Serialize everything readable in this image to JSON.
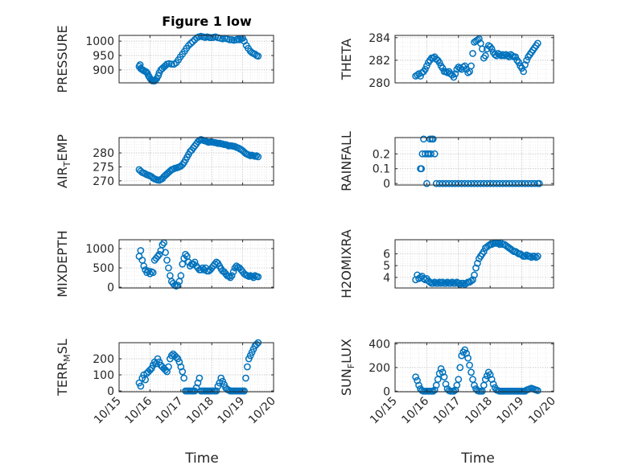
{
  "figure": {
    "title": "Figure 1 low",
    "marker_color": "#0072BD",
    "x_label_left": "Time",
    "x_label_right": "Time",
    "x_ticks": [
      "10/15",
      "10/16",
      "10/17",
      "10/18",
      "10/19",
      "10/20"
    ]
  },
  "chart_data": [
    {
      "id": "pressure",
      "type": "scatter",
      "title": "Figure 1 low",
      "ylabel": "PRESSURE",
      "ylim": [
        855,
        1020
      ],
      "yticks": [
        900,
        950,
        1000
      ],
      "xlim": [
        15,
        20
      ],
      "grid": true,
      "x": [
        15.65,
        15.68,
        15.7,
        15.73,
        15.77,
        15.8,
        15.85,
        15.88,
        15.92,
        15.95,
        15.98,
        16.02,
        16.05,
        16.08,
        16.12,
        16.15,
        16.18,
        16.22,
        16.27,
        16.3,
        16.35,
        16.4,
        16.45,
        16.5,
        16.55,
        16.62,
        16.7,
        16.78,
        16.85,
        16.92,
        16.98,
        17.05,
        17.12,
        17.18,
        17.25,
        17.32,
        17.38,
        17.45,
        17.52,
        17.58,
        17.65,
        17.72,
        17.78,
        17.85,
        17.92,
        17.98,
        18.05,
        18.12,
        18.2,
        18.28,
        18.35,
        18.42,
        18.5,
        18.58,
        18.65,
        18.72,
        18.8,
        18.85,
        18.9,
        18.95,
        19.0,
        19.05,
        19.12,
        19.18,
        19.25,
        19.3,
        19.35,
        19.4,
        19.45,
        19.5
      ],
      "y": [
        912,
        918,
        905,
        902,
        900,
        897,
        895,
        893,
        888,
        880,
        875,
        868,
        865,
        862,
        862,
        862,
        865,
        870,
        880,
        890,
        900,
        905,
        910,
        915,
        920,
        922,
        920,
        920,
        925,
        935,
        945,
        955,
        965,
        975,
        985,
        992,
        998,
        1005,
        1012,
        1015,
        1017,
        1015,
        1013,
        1015,
        1013,
        1012,
        1013,
        1015,
        1012,
        1010,
        1008,
        1010,
        1008,
        1005,
        1005,
        1003,
        1005,
        1008,
        1005,
        1008,
        1010,
        1000,
        985,
        975,
        965,
        960,
        957,
        955,
        950,
        948
      ]
    },
    {
      "id": "theta",
      "type": "scatter",
      "title": "",
      "ylabel": "THETA",
      "ylim": [
        280,
        284.2
      ],
      "yticks": [
        280,
        282,
        284
      ],
      "xlim": [
        15,
        20
      ],
      "grid": true,
      "x": [
        15.65,
        15.7,
        15.75,
        15.8,
        15.85,
        15.9,
        15.95,
        16.0,
        16.05,
        16.1,
        16.15,
        16.2,
        16.25,
        16.3,
        16.35,
        16.4,
        16.45,
        16.5,
        16.55,
        16.6,
        16.65,
        16.7,
        16.75,
        16.8,
        16.85,
        16.9,
        16.95,
        17.0,
        17.05,
        17.1,
        17.15,
        17.2,
        17.25,
        17.3,
        17.35,
        17.4,
        17.45,
        17.5,
        17.55,
        17.6,
        17.65,
        17.7,
        17.75,
        17.8,
        17.85,
        17.9,
        17.95,
        18.0,
        18.05,
        18.1,
        18.15,
        18.2,
        18.25,
        18.3,
        18.35,
        18.4,
        18.45,
        18.5,
        18.55,
        18.6,
        18.65,
        18.7,
        18.75,
        18.8,
        18.85,
        18.9,
        18.95,
        19.0,
        19.05,
        19.1,
        19.15,
        19.2,
        19.25,
        19.3,
        19.35,
        19.4,
        19.45,
        19.5
      ],
      "y": [
        280.6,
        280.7,
        280.8,
        280.6,
        280.9,
        281.0,
        281.2,
        281.5,
        281.8,
        282.0,
        282.2,
        282.2,
        282.3,
        282.1,
        282.0,
        281.8,
        281.5,
        281.3,
        281.0,
        281.0,
        280.9,
        281.0,
        280.8,
        280.7,
        280.5,
        280.8,
        281.2,
        281.4,
        281.3,
        281.2,
        281.4,
        281.5,
        281.2,
        280.9,
        281.0,
        281.5,
        282.6,
        283.6,
        283.7,
        283.8,
        283.9,
        283.5,
        283.0,
        282.2,
        282.4,
        283.0,
        283.3,
        283.2,
        283.0,
        282.7,
        282.5,
        282.4,
        282.6,
        282.5,
        282.4,
        282.5,
        282.4,
        282.5,
        282.4,
        282.3,
        282.5,
        282.4,
        282.3,
        282.3,
        282.0,
        281.8,
        281.5,
        281.3,
        281.0,
        281.6,
        282.0,
        282.3,
        282.5,
        282.7,
        282.9,
        283.1,
        283.3,
        283.5
      ]
    },
    {
      "id": "air_temp",
      "type": "scatter",
      "title": "",
      "ylabel": "AIR_TEMP",
      "ylabel_display": {
        "base": "AIR",
        "sub": "T",
        "rest": "EMP"
      },
      "ylim": [
        268.5,
        285.5
      ],
      "yticks": [
        270,
        275,
        280
      ],
      "xlim": [
        15,
        20
      ],
      "grid": true,
      "x": [
        15.65,
        15.7,
        15.75,
        15.8,
        15.85,
        15.9,
        15.95,
        16.0,
        16.05,
        16.1,
        16.15,
        16.2,
        16.25,
        16.3,
        16.35,
        16.4,
        16.45,
        16.5,
        16.55,
        16.6,
        16.65,
        16.7,
        16.75,
        16.8,
        16.85,
        16.9,
        16.95,
        17.0,
        17.05,
        17.1,
        17.15,
        17.2,
        17.25,
        17.3,
        17.35,
        17.4,
        17.45,
        17.5,
        17.55,
        17.6,
        17.65,
        17.7,
        17.75,
        17.8,
        17.85,
        17.9,
        17.95,
        18.0,
        18.05,
        18.1,
        18.15,
        18.2,
        18.25,
        18.3,
        18.35,
        18.4,
        18.45,
        18.5,
        18.55,
        18.6,
        18.65,
        18.7,
        18.75,
        18.8,
        18.85,
        18.9,
        18.95,
        19.0,
        19.05,
        19.1,
        19.15,
        19.2,
        19.25,
        19.3,
        19.35,
        19.4,
        19.45,
        19.5
      ],
      "y": [
        274.0,
        273.5,
        273.0,
        272.8,
        272.5,
        272.2,
        272.0,
        271.8,
        271.5,
        271.0,
        270.7,
        270.5,
        270.3,
        270.2,
        270.5,
        270.8,
        271.5,
        272.0,
        272.5,
        273.0,
        273.5,
        274.0,
        274.2,
        274.5,
        274.6,
        274.8,
        275.0,
        275.3,
        275.8,
        276.5,
        277.5,
        278.5,
        279.5,
        280.5,
        281.0,
        281.8,
        282.5,
        283.2,
        284.0,
        284.5,
        284.8,
        284.6,
        284.4,
        284.3,
        284.0,
        283.8,
        284.0,
        283.9,
        283.8,
        283.7,
        283.6,
        283.4,
        283.5,
        283.3,
        283.2,
        283.0,
        283.0,
        282.8,
        282.5,
        282.6,
        282.5,
        282.4,
        282.3,
        282.0,
        281.8,
        281.5,
        281.2,
        280.8,
        280.3,
        279.8,
        279.5,
        279.3,
        279.0,
        279.2,
        279.0,
        278.8,
        279.0,
        278.6
      ]
    },
    {
      "id": "rainfall",
      "type": "scatter",
      "title": "",
      "ylabel": "RAINFALL",
      "ylim": [
        -0.01,
        0.31
      ],
      "yticks": [
        0,
        0.1,
        0.2
      ],
      "xlim": [
        15,
        20
      ],
      "grid": true,
      "x": [
        15.8,
        15.83,
        15.86,
        15.9,
        15.95,
        16.0,
        16.03,
        16.06,
        16.1,
        16.13,
        16.16,
        16.2,
        16.25,
        16.3,
        16.4,
        16.5,
        16.6,
        16.7,
        16.8,
        16.9,
        17.0,
        17.1,
        17.2,
        17.3,
        17.4,
        17.5,
        17.6,
        17.7,
        17.8,
        17.9,
        18.0,
        18.1,
        18.2,
        18.3,
        18.4,
        18.5,
        18.6,
        18.7,
        18.8,
        18.9,
        19.0,
        19.1,
        19.2,
        19.3,
        19.4,
        19.5,
        19.55
      ],
      "y": [
        0.1,
        0.1,
        0.2,
        0.3,
        0.2,
        0.0,
        0.2,
        0.2,
        0.3,
        0.2,
        0.3,
        0.3,
        0.2,
        0.0,
        0.0,
        0.0,
        0.0,
        0.0,
        0.0,
        0.0,
        0.0,
        0.0,
        0.0,
        0.0,
        0.0,
        0.0,
        0.0,
        0.0,
        0.0,
        0.0,
        0.0,
        0.0,
        0.0,
        0.0,
        0.0,
        0.0,
        0.0,
        0.0,
        0.0,
        0.0,
        0.0,
        0.0,
        0.0,
        0.0,
        0.0,
        0.0,
        0.0
      ]
    },
    {
      "id": "mixdepth",
      "type": "scatter",
      "title": "",
      "ylabel": "MIXDEPTH",
      "ylim": [
        -20,
        1230
      ],
      "yticks": [
        0,
        500,
        1000
      ],
      "xlim": [
        15,
        20
      ],
      "grid": true,
      "x": [
        15.65,
        15.7,
        15.75,
        15.8,
        15.85,
        15.9,
        15.95,
        16.0,
        16.05,
        16.1,
        16.15,
        16.2,
        16.25,
        16.3,
        16.35,
        16.4,
        16.45,
        16.5,
        16.55,
        16.6,
        16.65,
        16.7,
        16.75,
        16.8,
        16.85,
        16.9,
        16.95,
        17.0,
        17.05,
        17.1,
        17.15,
        17.2,
        17.25,
        17.3,
        17.35,
        17.4,
        17.45,
        17.5,
        17.55,
        17.6,
        17.65,
        17.7,
        17.75,
        17.8,
        17.85,
        17.9,
        17.95,
        18.0,
        18.05,
        18.1,
        18.15,
        18.2,
        18.25,
        18.3,
        18.35,
        18.4,
        18.45,
        18.5,
        18.55,
        18.6,
        18.65,
        18.7,
        18.75,
        18.8,
        18.85,
        18.9,
        18.95,
        19.0,
        19.05,
        19.1,
        19.15,
        19.2,
        19.25,
        19.3,
        19.35,
        19.4,
        19.45,
        19.5
      ],
      "y": [
        800,
        950,
        700,
        550,
        450,
        380,
        420,
        350,
        400,
        380,
        700,
        750,
        800,
        850,
        950,
        1100,
        1150,
        900,
        700,
        500,
        300,
        150,
        100,
        50,
        30,
        50,
        150,
        300,
        600,
        750,
        850,
        800,
        650,
        550,
        600,
        600,
        650,
        550,
        500,
        450,
        450,
        500,
        450,
        500,
        420,
        420,
        450,
        500,
        550,
        600,
        650,
        620,
        550,
        480,
        420,
        400,
        350,
        300,
        280,
        250,
        300,
        400,
        500,
        550,
        520,
        500,
        450,
        400,
        350,
        320,
        300,
        280,
        300,
        280,
        250,
        300,
        280,
        270
      ]
    },
    {
      "id": "h2omixra",
      "type": "scatter",
      "title": "",
      "ylabel": "H2OMIXRA",
      "ylim": [
        3.1,
        7.2
      ],
      "yticks": [
        4,
        5,
        6
      ],
      "xlim": [
        15,
        20
      ],
      "grid": true,
      "x": [
        15.65,
        15.7,
        15.75,
        15.8,
        15.85,
        15.9,
        15.95,
        16.0,
        16.05,
        16.1,
        16.15,
        16.2,
        16.25,
        16.3,
        16.35,
        16.4,
        16.45,
        16.5,
        16.55,
        16.6,
        16.65,
        16.7,
        16.75,
        16.8,
        16.85,
        16.9,
        16.95,
        17.0,
        17.05,
        17.1,
        17.15,
        17.2,
        17.25,
        17.3,
        17.35,
        17.4,
        17.45,
        17.5,
        17.55,
        17.6,
        17.65,
        17.7,
        17.75,
        17.8,
        17.85,
        17.9,
        17.95,
        18.0,
        18.05,
        18.1,
        18.15,
        18.2,
        18.25,
        18.3,
        18.35,
        18.4,
        18.45,
        18.5,
        18.55,
        18.6,
        18.65,
        18.7,
        18.75,
        18.8,
        18.85,
        18.9,
        18.95,
        19.0,
        19.05,
        19.1,
        19.15,
        19.2,
        19.25,
        19.3,
        19.35,
        19.4,
        19.45,
        19.5
      ],
      "y": [
        3.8,
        4.2,
        3.9,
        4.0,
        4.1,
        3.9,
        3.8,
        3.9,
        3.7,
        3.6,
        3.5,
        3.5,
        3.6,
        3.5,
        3.5,
        3.6,
        3.5,
        3.6,
        3.5,
        3.5,
        3.6,
        3.5,
        3.5,
        3.6,
        3.5,
        3.5,
        3.6,
        3.5,
        3.4,
        3.5,
        3.5,
        3.4,
        3.5,
        3.6,
        3.6,
        3.7,
        3.8,
        4.2,
        4.8,
        5.2,
        5.6,
        5.8,
        6.0,
        6.2,
        6.5,
        6.6,
        6.7,
        6.8,
        6.8,
        6.9,
        6.9,
        6.9,
        6.9,
        6.8,
        6.9,
        6.8,
        6.8,
        6.7,
        6.6,
        6.5,
        6.4,
        6.3,
        6.2,
        6.2,
        6.1,
        6.0,
        6.0,
        5.9,
        5.8,
        5.8,
        5.9,
        5.8,
        5.8,
        5.7,
        5.8,
        5.8,
        5.7,
        5.8
      ]
    },
    {
      "id": "terr_msl",
      "type": "scatter",
      "title": "",
      "ylabel": "TERR_MSL",
      "ylabel_display": {
        "base": "TERR",
        "sub": "M",
        "rest": "SL"
      },
      "ylim": [
        -5,
        300
      ],
      "yticks": [
        0,
        100,
        200
      ],
      "xlim": [
        15,
        20
      ],
      "grid": true,
      "x": [
        15.65,
        15.7,
        15.75,
        15.8,
        15.85,
        15.9,
        15.95,
        16.0,
        16.05,
        16.1,
        16.15,
        16.2,
        16.25,
        16.3,
        16.35,
        16.4,
        16.45,
        16.5,
        16.55,
        16.6,
        16.65,
        16.7,
        16.75,
        16.8,
        16.85,
        16.9,
        16.95,
        17.0,
        17.05,
        17.1,
        17.15,
        17.2,
        17.25,
        17.3,
        17.35,
        17.4,
        17.45,
        17.5,
        17.55,
        17.6,
        17.65,
        17.7,
        17.75,
        17.8,
        17.85,
        17.9,
        17.95,
        18.0,
        18.05,
        18.1,
        18.15,
        18.2,
        18.25,
        18.3,
        18.35,
        18.4,
        18.45,
        18.5,
        18.55,
        18.6,
        18.65,
        18.7,
        18.75,
        18.8,
        18.85,
        18.9,
        18.95,
        19.0,
        19.05,
        19.1,
        19.15,
        19.2,
        19.25,
        19.3,
        19.35,
        19.4,
        19.45,
        19.5
      ],
      "y": [
        50,
        30,
        80,
        100,
        70,
        110,
        120,
        130,
        140,
        160,
        180,
        170,
        200,
        180,
        160,
        150,
        140,
        130,
        120,
        150,
        200,
        220,
        230,
        220,
        210,
        200,
        180,
        150,
        120,
        80,
        0,
        0,
        0,
        0,
        0,
        0,
        0,
        20,
        50,
        80,
        0,
        0,
        0,
        0,
        0,
        0,
        0,
        0,
        0,
        0,
        0,
        30,
        50,
        80,
        60,
        40,
        20,
        10,
        5,
        0,
        0,
        0,
        0,
        0,
        0,
        0,
        0,
        0,
        0,
        80,
        150,
        200,
        220,
        240,
        260,
        280,
        290,
        300
      ]
    },
    {
      "id": "sun_flux",
      "type": "scatter",
      "title": "",
      "ylabel": "SUN_FLUX",
      "ylabel_display": {
        "base": "SUN",
        "sub": "F",
        "rest": "LUX"
      },
      "ylim": [
        -5,
        410
      ],
      "yticks": [
        0,
        200,
        400
      ],
      "xlim": [
        15,
        20
      ],
      "grid": true,
      "x": [
        15.65,
        15.7,
        15.75,
        15.8,
        15.85,
        15.9,
        15.95,
        16.0,
        16.05,
        16.1,
        16.15,
        16.2,
        16.25,
        16.3,
        16.35,
        16.4,
        16.45,
        16.5,
        16.55,
        16.6,
        16.65,
        16.7,
        16.75,
        16.8,
        16.85,
        16.9,
        16.95,
        17.0,
        17.05,
        17.1,
        17.15,
        17.2,
        17.25,
        17.3,
        17.35,
        17.4,
        17.45,
        17.5,
        17.55,
        17.6,
        17.65,
        17.7,
        17.75,
        17.8,
        17.85,
        17.9,
        17.95,
        18.0,
        18.05,
        18.1,
        18.15,
        18.2,
        18.25,
        18.3,
        18.35,
        18.4,
        18.45,
        18.5,
        18.55,
        18.6,
        18.65,
        18.7,
        18.75,
        18.8,
        18.85,
        18.9,
        18.95,
        19.0,
        19.05,
        19.1,
        19.15,
        19.2,
        19.25,
        19.3,
        19.35,
        19.4,
        19.45,
        19.5
      ],
      "y": [
        120,
        90,
        50,
        20,
        5,
        0,
        0,
        0,
        0,
        0,
        0,
        0,
        10,
        50,
        100,
        150,
        190,
        160,
        120,
        60,
        20,
        5,
        0,
        0,
        0,
        10,
        50,
        100,
        200,
        300,
        330,
        350,
        320,
        280,
        220,
        160,
        100,
        50,
        20,
        5,
        0,
        0,
        0,
        50,
        100,
        130,
        160,
        140,
        100,
        60,
        30,
        10,
        5,
        0,
        0,
        0,
        0,
        0,
        0,
        0,
        0,
        0,
        0,
        0,
        0,
        0,
        0,
        0,
        0,
        0,
        10,
        15,
        20,
        25,
        20,
        15,
        10,
        5
      ]
    }
  ]
}
